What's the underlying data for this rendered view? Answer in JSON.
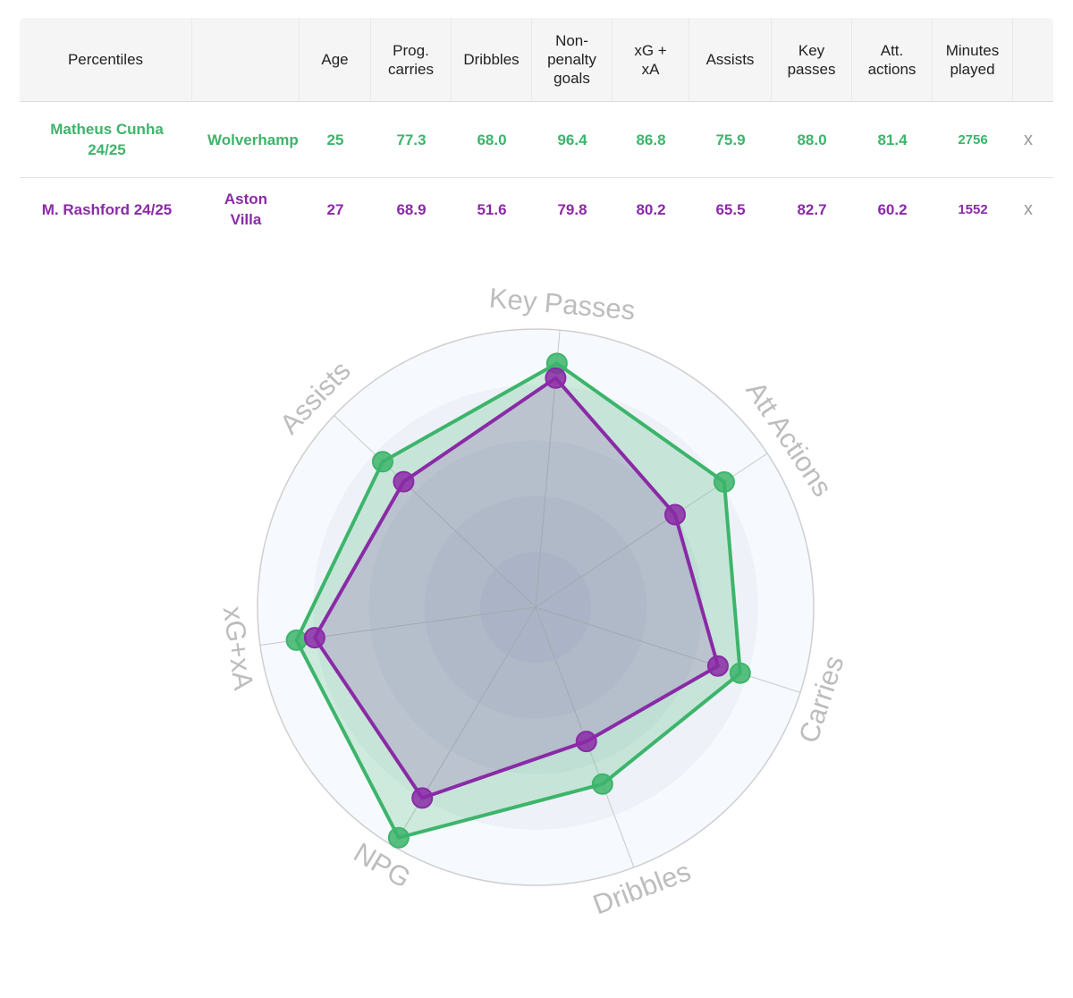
{
  "table": {
    "headers": [
      "Percentiles",
      "",
      "Age",
      "Prog. carries",
      "Dribbles",
      "Non-penalty goals",
      "xG + xA",
      "Assists",
      "Key passes",
      "Att. actions",
      "Minutes played"
    ],
    "remove_label": "x",
    "rows": [
      {
        "player": "Matheus Cunha 24/25",
        "team": "Wolverhamp",
        "age": "25",
        "prog_carries": "77.3",
        "dribbles": "68.0",
        "np_goals": "96.4",
        "xg_xa": "86.8",
        "assists": "75.9",
        "key_passes": "88.0",
        "att_actions": "81.4",
        "minutes": "2756",
        "color": "#3cb56b"
      },
      {
        "player": "M. Rashford 24/25",
        "team": "Aston Villa",
        "age": "27",
        "prog_carries": "68.9",
        "dribbles": "51.6",
        "np_goals": "79.8",
        "xg_xa": "80.2",
        "assists": "65.5",
        "key_passes": "82.7",
        "att_actions": "60.2",
        "minutes": "1552",
        "color": "#8a2aa6"
      }
    ]
  },
  "chart_data": {
    "type": "radar",
    "axes": [
      "Key Passes",
      "Att Actions",
      "Carries",
      "Dribbles",
      "NPG",
      "xG+xA",
      "Assists"
    ],
    "range": [
      0,
      100
    ],
    "series": [
      {
        "name": "Matheus Cunha 24/25",
        "color": "#3cb56b",
        "values": [
          88.0,
          81.4,
          77.3,
          68.0,
          96.4,
          86.8,
          75.9
        ]
      },
      {
        "name": "M. Rashford 24/25",
        "color": "#8a2aa6",
        "values": [
          82.7,
          60.2,
          68.9,
          51.6,
          79.8,
          80.2,
          65.5
        ]
      }
    ]
  }
}
